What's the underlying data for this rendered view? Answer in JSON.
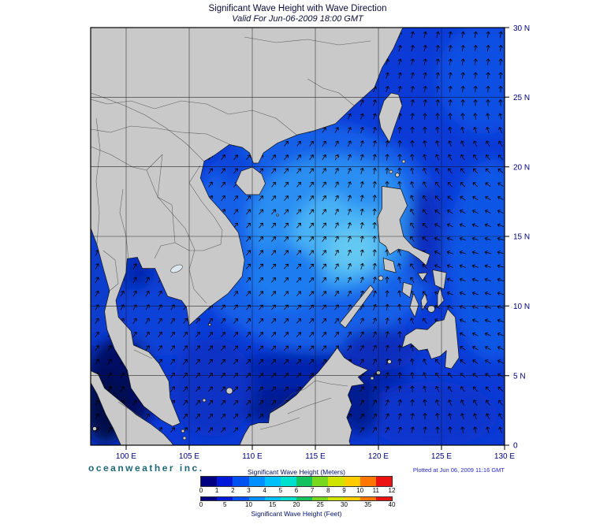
{
  "page": {
    "title": "Significant Wave Height with Wave Direction",
    "subtitle": "Valid For Jun-06-2009 18:00 GMT",
    "branding": "oceanweather inc.",
    "plotted_note": "Plotted at Jun 06, 2009 11:16 GMT"
  },
  "map": {
    "land_color": "#c9c9c9",
    "frame_color": "#000000",
    "label_color": "#000080"
  },
  "axes": {
    "lon_labels": [
      "100 E",
      "105 E",
      "110 E",
      "115 E",
      "120 E",
      "125 E",
      "130 E"
    ],
    "lat_labels": [
      "30 N",
      "25 N",
      "20 N",
      "15 N",
      "10 N",
      "5 N",
      "0"
    ]
  },
  "legend": {
    "meters_title": "Significant Wave Height (Meters)",
    "feet_title": "Significant Wave Height (Feet)",
    "meters_ticks": [
      "0",
      "1",
      "2",
      "3",
      "4",
      "5",
      "6",
      "7",
      "8",
      "9",
      "10",
      "11",
      "12"
    ],
    "feet_ticks": [
      "0",
      "5",
      "10",
      "15",
      "20",
      "25",
      "30",
      "35",
      "40"
    ],
    "colors": [
      "#000082",
      "#0018d8",
      "#0052f0",
      "#0090ff",
      "#00c0fa",
      "#00e0cc",
      "#14c360",
      "#78d81e",
      "#cfe400",
      "#ffcc00",
      "#ff7700",
      "#ee1111"
    ]
  },
  "ocean_shades": {
    "base": "#0b3ad6",
    "light1": "#1261e8",
    "light2": "#2b8ef2",
    "light2b": "#1e7cf0",
    "light3": "#49b2f5",
    "core": "#63c8f2",
    "mid": "#0c42d8",
    "tonkin": "#0d46dc",
    "south": "#0830c4",
    "dark1": "#0628b0",
    "dark2": "#0524ac",
    "deep": "#041a90",
    "navy": "#000c62",
    "navy2": "#000848",
    "andaman": "#0b3ccc",
    "sulu": "#0a2ebc",
    "celebes": "#0c36cc",
    "pac1": "#1157e5",
    "pac2": "#0f50e2",
    "rim": "#0a2ec0"
  },
  "chart_data": {
    "type": "heatmap",
    "title": "Significant Wave Height with Wave Direction",
    "valid_time": "Jun-06-2009 18:00 GMT",
    "plotted_time": "Jun 06, 2009 11:16 GMT",
    "region": {
      "lon_min": 97.2,
      "lon_max": 130,
      "lat_min": 0,
      "lat_max": 30
    },
    "colorbar": {
      "units_primary": "Meters",
      "range_m": [
        0,
        12
      ],
      "step_m": 1,
      "units_secondary": "Feet",
      "range_ft": [
        0,
        40
      ],
      "step_ft": 5
    },
    "wave_height_m": {
      "lons": [
        100,
        105,
        110,
        115,
        120,
        125,
        130
      ],
      "lats": [
        0,
        5,
        10,
        15,
        20,
        25,
        30
      ],
      "values": [
        [
          0.3,
          0.8,
          1.2,
          1.5,
          1.5,
          1.2,
          1.2
        ],
        [
          0.2,
          1.0,
          1.5,
          1.8,
          1.5,
          1.5,
          1.8
        ],
        [
          1.0,
          1.3,
          1.8,
          2.5,
          2.0,
          1.2,
          1.8
        ],
        [
          0.0,
          1.0,
          2.0,
          3.0,
          2.5,
          1.5,
          2.0
        ],
        [
          0.0,
          0.0,
          1.5,
          2.5,
          2.0,
          1.5,
          1.8
        ],
        [
          0.0,
          0.0,
          0.0,
          1.5,
          1.8,
          1.5,
          1.8
        ],
        [
          0.0,
          0.0,
          0.0,
          1.2,
          1.5,
          1.5,
          1.5
        ]
      ]
    },
    "wave_direction": {
      "lons": [
        100,
        105,
        110,
        115,
        120,
        125,
        130
      ],
      "lats": [
        0,
        5,
        10,
        15,
        20,
        25,
        30
      ],
      "toward_deg": [
        [
          60,
          50,
          45,
          45,
          55,
          80,
          100
        ],
        [
          55,
          50,
          45,
          45,
          60,
          130,
          150
        ],
        [
          60,
          55,
          50,
          45,
          70,
          155,
          165
        ],
        [
          65,
          60,
          50,
          48,
          90,
          160,
          165
        ],
        [
          60,
          55,
          50,
          52,
          80,
          120,
          140
        ],
        [
          50,
          50,
          50,
          55,
          70,
          80,
          90
        ],
        [
          45,
          45,
          50,
          60,
          70,
          75,
          80
        ]
      ]
    }
  }
}
